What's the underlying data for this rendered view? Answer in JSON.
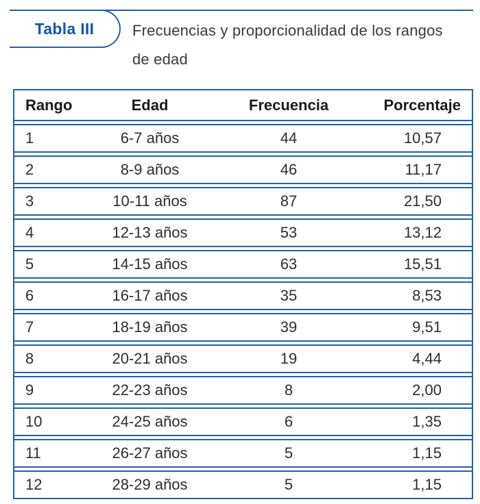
{
  "badge": {
    "label": "Tabla III"
  },
  "title": {
    "lines": [
      "Frecuencias y proporcionalidad de los rangos",
      "de edad"
    ]
  },
  "colors": {
    "accent_blue": "#2061a8",
    "badge_text_blue": "#0f57a8"
  },
  "table": {
    "columns": [
      "Rango",
      "Edad",
      "Frecuencia",
      "Porcentaje"
    ],
    "rows": [
      [
        "1",
        "6-7 años",
        "44",
        "10,57"
      ],
      [
        "2",
        "8-9 años",
        "46",
        "11,17"
      ],
      [
        "3",
        "10-11 años",
        "87",
        "21,50"
      ],
      [
        "4",
        "12-13 años",
        "53",
        "13,12"
      ],
      [
        "5",
        "14-15 años",
        "63",
        "15,51"
      ],
      [
        "6",
        "16-17 años",
        "35",
        "8,53"
      ],
      [
        "7",
        "18-19 años",
        "39",
        "9,51"
      ],
      [
        "8",
        "20-21 años",
        "19",
        "4,44"
      ],
      [
        "9",
        "22-23 años",
        "8",
        "2,00"
      ],
      [
        "10",
        "24-25 años",
        "6",
        "1,35"
      ],
      [
        "11",
        "26-27 años",
        "5",
        "1,15"
      ],
      [
        "12",
        "28-29 años",
        "5",
        "1,15"
      ]
    ]
  },
  "chart_data": {
    "type": "table",
    "title": "Tabla III — Frecuencias y proporcionalidad de los rangos de edad",
    "columns": [
      "Rango",
      "Edad",
      "Frecuencia",
      "Porcentaje"
    ],
    "rows": [
      [
        "1",
        "6-7 años",
        "44",
        "10,57"
      ],
      [
        "2",
        "8-9 años",
        "46",
        "11,17"
      ],
      [
        "3",
        "10-11 años",
        "87",
        "21,50"
      ],
      [
        "4",
        "12-13 años",
        "53",
        "13,12"
      ],
      [
        "5",
        "14-15 años",
        "63",
        "15,51"
      ],
      [
        "6",
        "16-17 años",
        "35",
        "8,53"
      ],
      [
        "7",
        "18-19 años",
        "39",
        "9,51"
      ],
      [
        "8",
        "20-21 años",
        "19",
        "4,44"
      ],
      [
        "9",
        "22-23 años",
        "8",
        "2,00"
      ],
      [
        "10",
        "24-25 años",
        "6",
        "1,35"
      ],
      [
        "11",
        "26-27 años",
        "5",
        "1,15"
      ],
      [
        "12",
        "28-29 años",
        "5",
        "1,15"
      ]
    ]
  }
}
